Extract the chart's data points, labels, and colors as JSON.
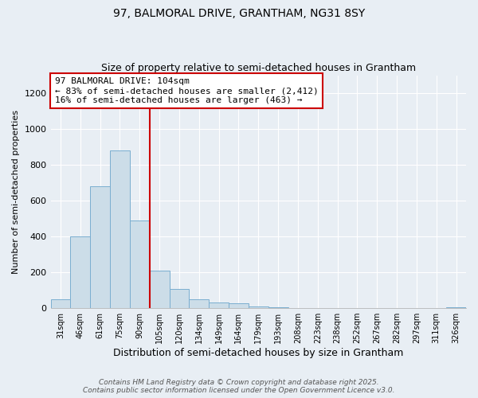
{
  "title1": "97, BALMORAL DRIVE, GRANTHAM, NG31 8SY",
  "title2": "Size of property relative to semi-detached houses in Grantham",
  "xlabel": "Distribution of semi-detached houses by size in Grantham",
  "ylabel": "Number of semi-detached properties",
  "categories": [
    "31sqm",
    "46sqm",
    "61sqm",
    "75sqm",
    "90sqm",
    "105sqm",
    "120sqm",
    "134sqm",
    "149sqm",
    "164sqm",
    "179sqm",
    "193sqm",
    "208sqm",
    "223sqm",
    "238sqm",
    "252sqm",
    "267sqm",
    "282sqm",
    "297sqm",
    "311sqm",
    "326sqm"
  ],
  "values": [
    50,
    400,
    680,
    880,
    490,
    210,
    105,
    50,
    30,
    25,
    10,
    5,
    2,
    2,
    1,
    1,
    1,
    0,
    0,
    0,
    5
  ],
  "bar_color": "#ccdde8",
  "bar_edgecolor": "#7aaed0",
  "property_line_index": 4,
  "property_line_label": "97 BALMORAL DRIVE: 104sqm",
  "annotation_line1": "← 83% of semi-detached houses are smaller (2,412)",
  "annotation_line2": "16% of semi-detached houses are larger (463) →",
  "annotation_box_color": "#ffffff",
  "annotation_box_edgecolor": "#cc0000",
  "vline_color": "#cc0000",
  "footer1": "Contains HM Land Registry data © Crown copyright and database right 2025.",
  "footer2": "Contains public sector information licensed under the Open Government Licence v3.0.",
  "ylim": [
    0,
    1300
  ],
  "yticks": [
    0,
    200,
    400,
    600,
    800,
    1000,
    1200
  ],
  "background_color": "#e8eef4",
  "grid_color": "#ffffff",
  "title_fontsize": 10,
  "subtitle_fontsize": 9,
  "annotation_fontsize": 8,
  "footer_fontsize": 6.5
}
